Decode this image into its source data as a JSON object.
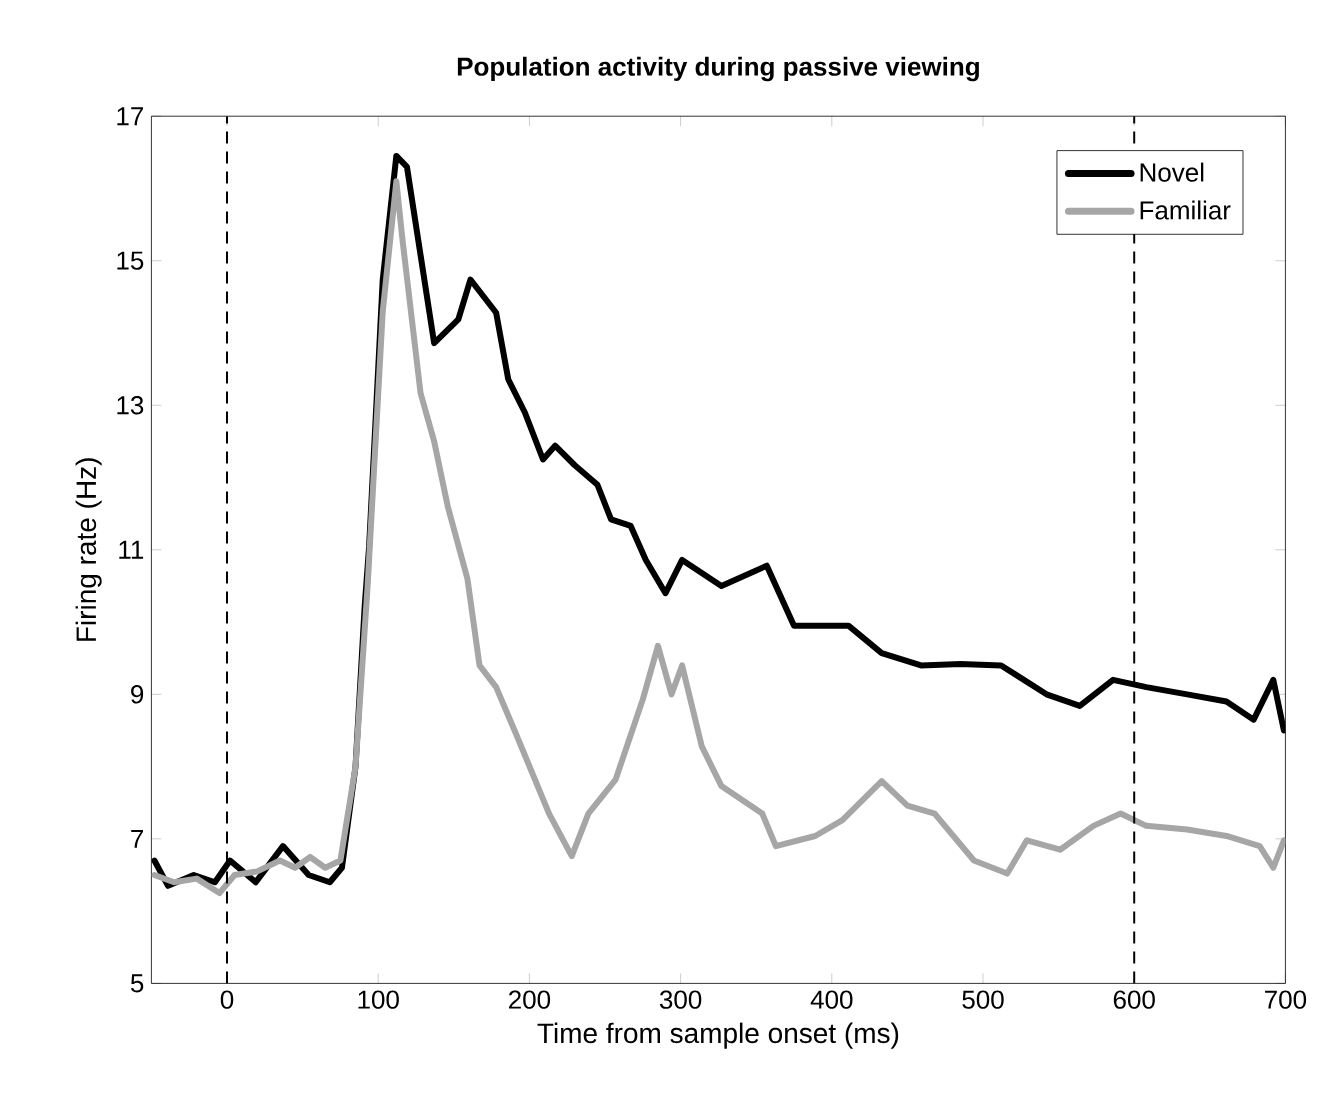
{
  "chart_data": {
    "type": "line",
    "title": "Population activity during passive viewing",
    "xlabel": "Time from sample onset  (ms)",
    "ylabel": "Firing rate  (Hz)",
    "xlim": [
      -50,
      700
    ],
    "ylim": [
      5,
      17
    ],
    "xticks": [
      0,
      100,
      200,
      300,
      400,
      500,
      600,
      700
    ],
    "yticks": [
      5,
      7,
      9,
      11,
      13,
      15,
      17
    ],
    "grid": false,
    "legend": "top right",
    "marker": "none",
    "line_style": "solid",
    "ref_lines": [
      {
        "axis": "x",
        "value": 0,
        "line_style": "dashed",
        "color": "#000000"
      },
      {
        "axis": "x",
        "value": 600,
        "line_style": "dashed",
        "color": "#000000"
      }
    ],
    "series": [
      {
        "name": "Novel",
        "color": "#000000",
        "x": [
          -48,
          -39,
          -22,
          -8,
          2,
          19,
          37,
          54,
          68,
          76,
          85,
          91,
          94,
          103,
          112,
          119,
          137,
          153,
          161,
          178,
          186,
          197,
          209,
          217,
          230,
          245,
          254,
          267,
          277,
          290,
          301,
          327,
          357,
          375,
          411,
          433,
          459,
          485,
          512,
          542,
          564,
          586,
          608,
          635,
          661,
          679,
          692,
          699
        ],
        "values": [
          6.7,
          6.35,
          6.5,
          6.4,
          6.7,
          6.4,
          6.9,
          6.5,
          6.4,
          6.6,
          8.0,
          10.2,
          11.05,
          14.74,
          16.45,
          16.3,
          13.86,
          14.19,
          14.74,
          14.28,
          13.36,
          12.9,
          12.25,
          12.44,
          12.17,
          11.9,
          11.42,
          11.33,
          10.86,
          10.4,
          10.86,
          10.5,
          10.78,
          9.95,
          9.95,
          9.57,
          9.4,
          9.42,
          9.4,
          9.0,
          8.84,
          9.2,
          9.1,
          9.0,
          8.9,
          8.65,
          9.2,
          8.5
        ]
      },
      {
        "name": "Familiar",
        "color": "#a6a6a6",
        "x": [
          -48,
          -35,
          -20,
          -5,
          5,
          20,
          35,
          45,
          55,
          65,
          75,
          85,
          93,
          103,
          112,
          116,
          128,
          137,
          146,
          159,
          167,
          178,
          191,
          213,
          228,
          239,
          257,
          275,
          285,
          294,
          301,
          314,
          327,
          354,
          363,
          389,
          407,
          433,
          450,
          468,
          494,
          516,
          529,
          551,
          573,
          591,
          608,
          635,
          661,
          683,
          692,
          699
        ],
        "values": [
          6.5,
          6.4,
          6.45,
          6.25,
          6.5,
          6.55,
          6.7,
          6.6,
          6.75,
          6.6,
          6.7,
          8.0,
          10.5,
          14.3,
          16.1,
          15.3,
          13.17,
          12.5,
          11.6,
          10.6,
          9.4,
          9.1,
          8.46,
          7.35,
          6.76,
          7.35,
          7.82,
          8.93,
          9.67,
          9.0,
          9.4,
          8.28,
          7.73,
          7.35,
          6.9,
          7.04,
          7.26,
          7.8,
          7.46,
          7.35,
          6.7,
          6.52,
          6.98,
          6.85,
          7.18,
          7.35,
          7.18,
          7.13,
          7.04,
          6.9,
          6.6,
          6.98
        ]
      }
    ]
  }
}
